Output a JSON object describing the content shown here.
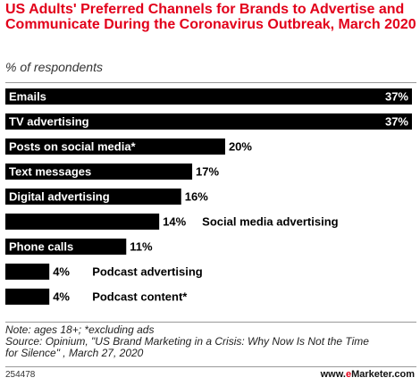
{
  "header": {
    "title": "US Adults' Preferred Channels for Brands to Advertise and Communicate During the Coronavirus Outbreak, March 2020",
    "subtitle": "% of respondents"
  },
  "chart_data": {
    "type": "bar",
    "orientation": "horizontal",
    "title": "US Adults' Preferred Channels for Brands to Advertise and Communicate During the Coronavirus Outbreak, March 2020",
    "subtitle": "% of respondents",
    "categories": [
      "Emails",
      "TV advertising",
      "Posts on social media*",
      "Text messages",
      "Digital advertising",
      "Social media advertising",
      "Phone calls",
      "Podcast advertising",
      "Podcast content*"
    ],
    "values": [
      37,
      37,
      20,
      17,
      16,
      14,
      11,
      4,
      4
    ],
    "value_labels": [
      "37%",
      "37%",
      "20%",
      "17%",
      "16%",
      "14%",
      "11%",
      "4%",
      "4%"
    ],
    "xlim": [
      0,
      37
    ],
    "grid": false,
    "legend": "none",
    "bar_color": "#000000",
    "label_color_inside": "#ffffff"
  },
  "footer": {
    "note": "Note: ages 18+; *excluding ads",
    "source_line1": "Source: Opinium, \"US Brand Marketing in a Crisis: Why Now Is Not the Time",
    "source_line2": "for Silence\" , March 27, 2020",
    "code": "254478",
    "brand_prefix": "www.",
    "brand_e": "e",
    "brand_suffix": "Marketer.com"
  },
  "colors": {
    "accent": "#e2001a",
    "bar": "#000000"
  }
}
